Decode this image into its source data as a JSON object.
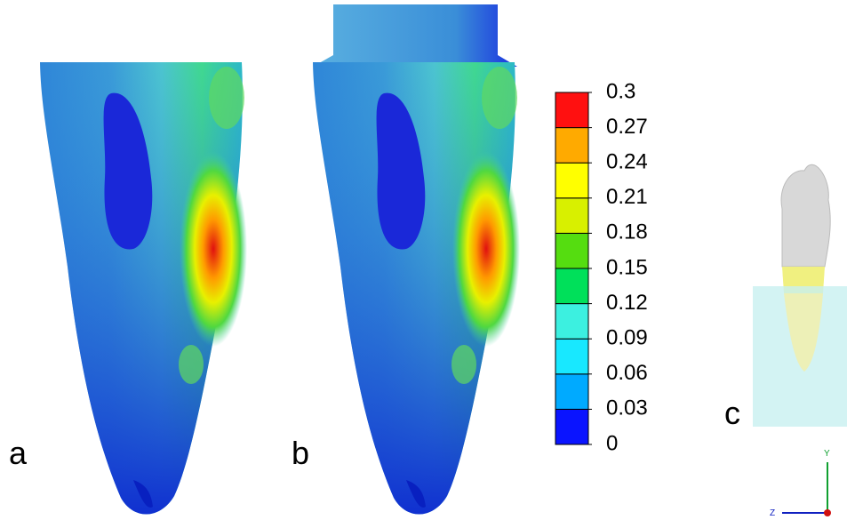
{
  "panels": {
    "a": "a",
    "b": "b",
    "c": "c"
  },
  "colorbar": {
    "ticks": [
      0,
      0.03,
      0.06,
      0.09,
      0.12,
      0.15,
      0.18,
      0.21,
      0.24,
      0.27,
      0.3
    ],
    "colors": [
      "#0a14ff",
      "#00aaff",
      "#18e8ff",
      "#3cf0e0",
      "#00e05a",
      "#55dd10",
      "#d8f000",
      "#ffff00",
      "#ffaa00",
      "#ff1010"
    ]
  },
  "axes": {
    "y": "Y",
    "z": "Z"
  }
}
